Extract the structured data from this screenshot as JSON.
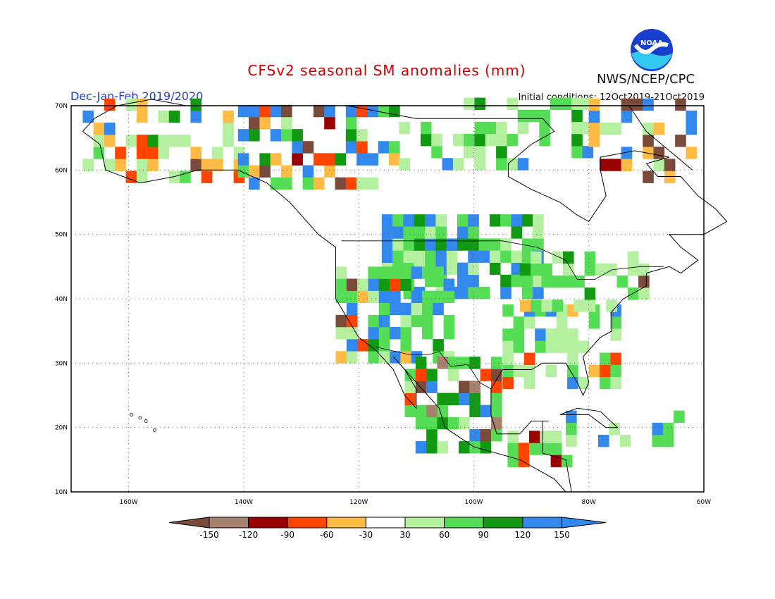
{
  "header": {
    "title": "CFSv2 seasonal SM anomalies (mm)",
    "season": "Dec-Jan-Feb 2019/2020",
    "initial_conditions": "Initial conditions: 12Oct2019-21Oct2019",
    "agency": "NWS/NCEP/CPC",
    "logo_text": "NOAA"
  },
  "map": {
    "lon_range": [
      -170,
      -60
    ],
    "lat_range": [
      10,
      70
    ],
    "lat_labels": [
      "70N",
      "60N",
      "50N",
      "40N",
      "30N",
      "20N",
      "10N"
    ],
    "lon_labels": [
      "160W",
      "140W",
      "120W",
      "100W",
      "80W",
      "60W"
    ],
    "legend": {
      "labels": [
        "-150",
        "-120",
        "-90",
        "-60",
        "-30",
        "30",
        "60",
        "90",
        "120",
        "150"
      ],
      "colors": [
        "#7a4a3a",
        "#a8806e",
        "#990000",
        "#ff4400",
        "#ffbb44",
        "#ffffff",
        "#b4f0a0",
        "#55dd55",
        "#119911",
        "#3388ee",
        "#3388ee"
      ]
    }
  }
}
